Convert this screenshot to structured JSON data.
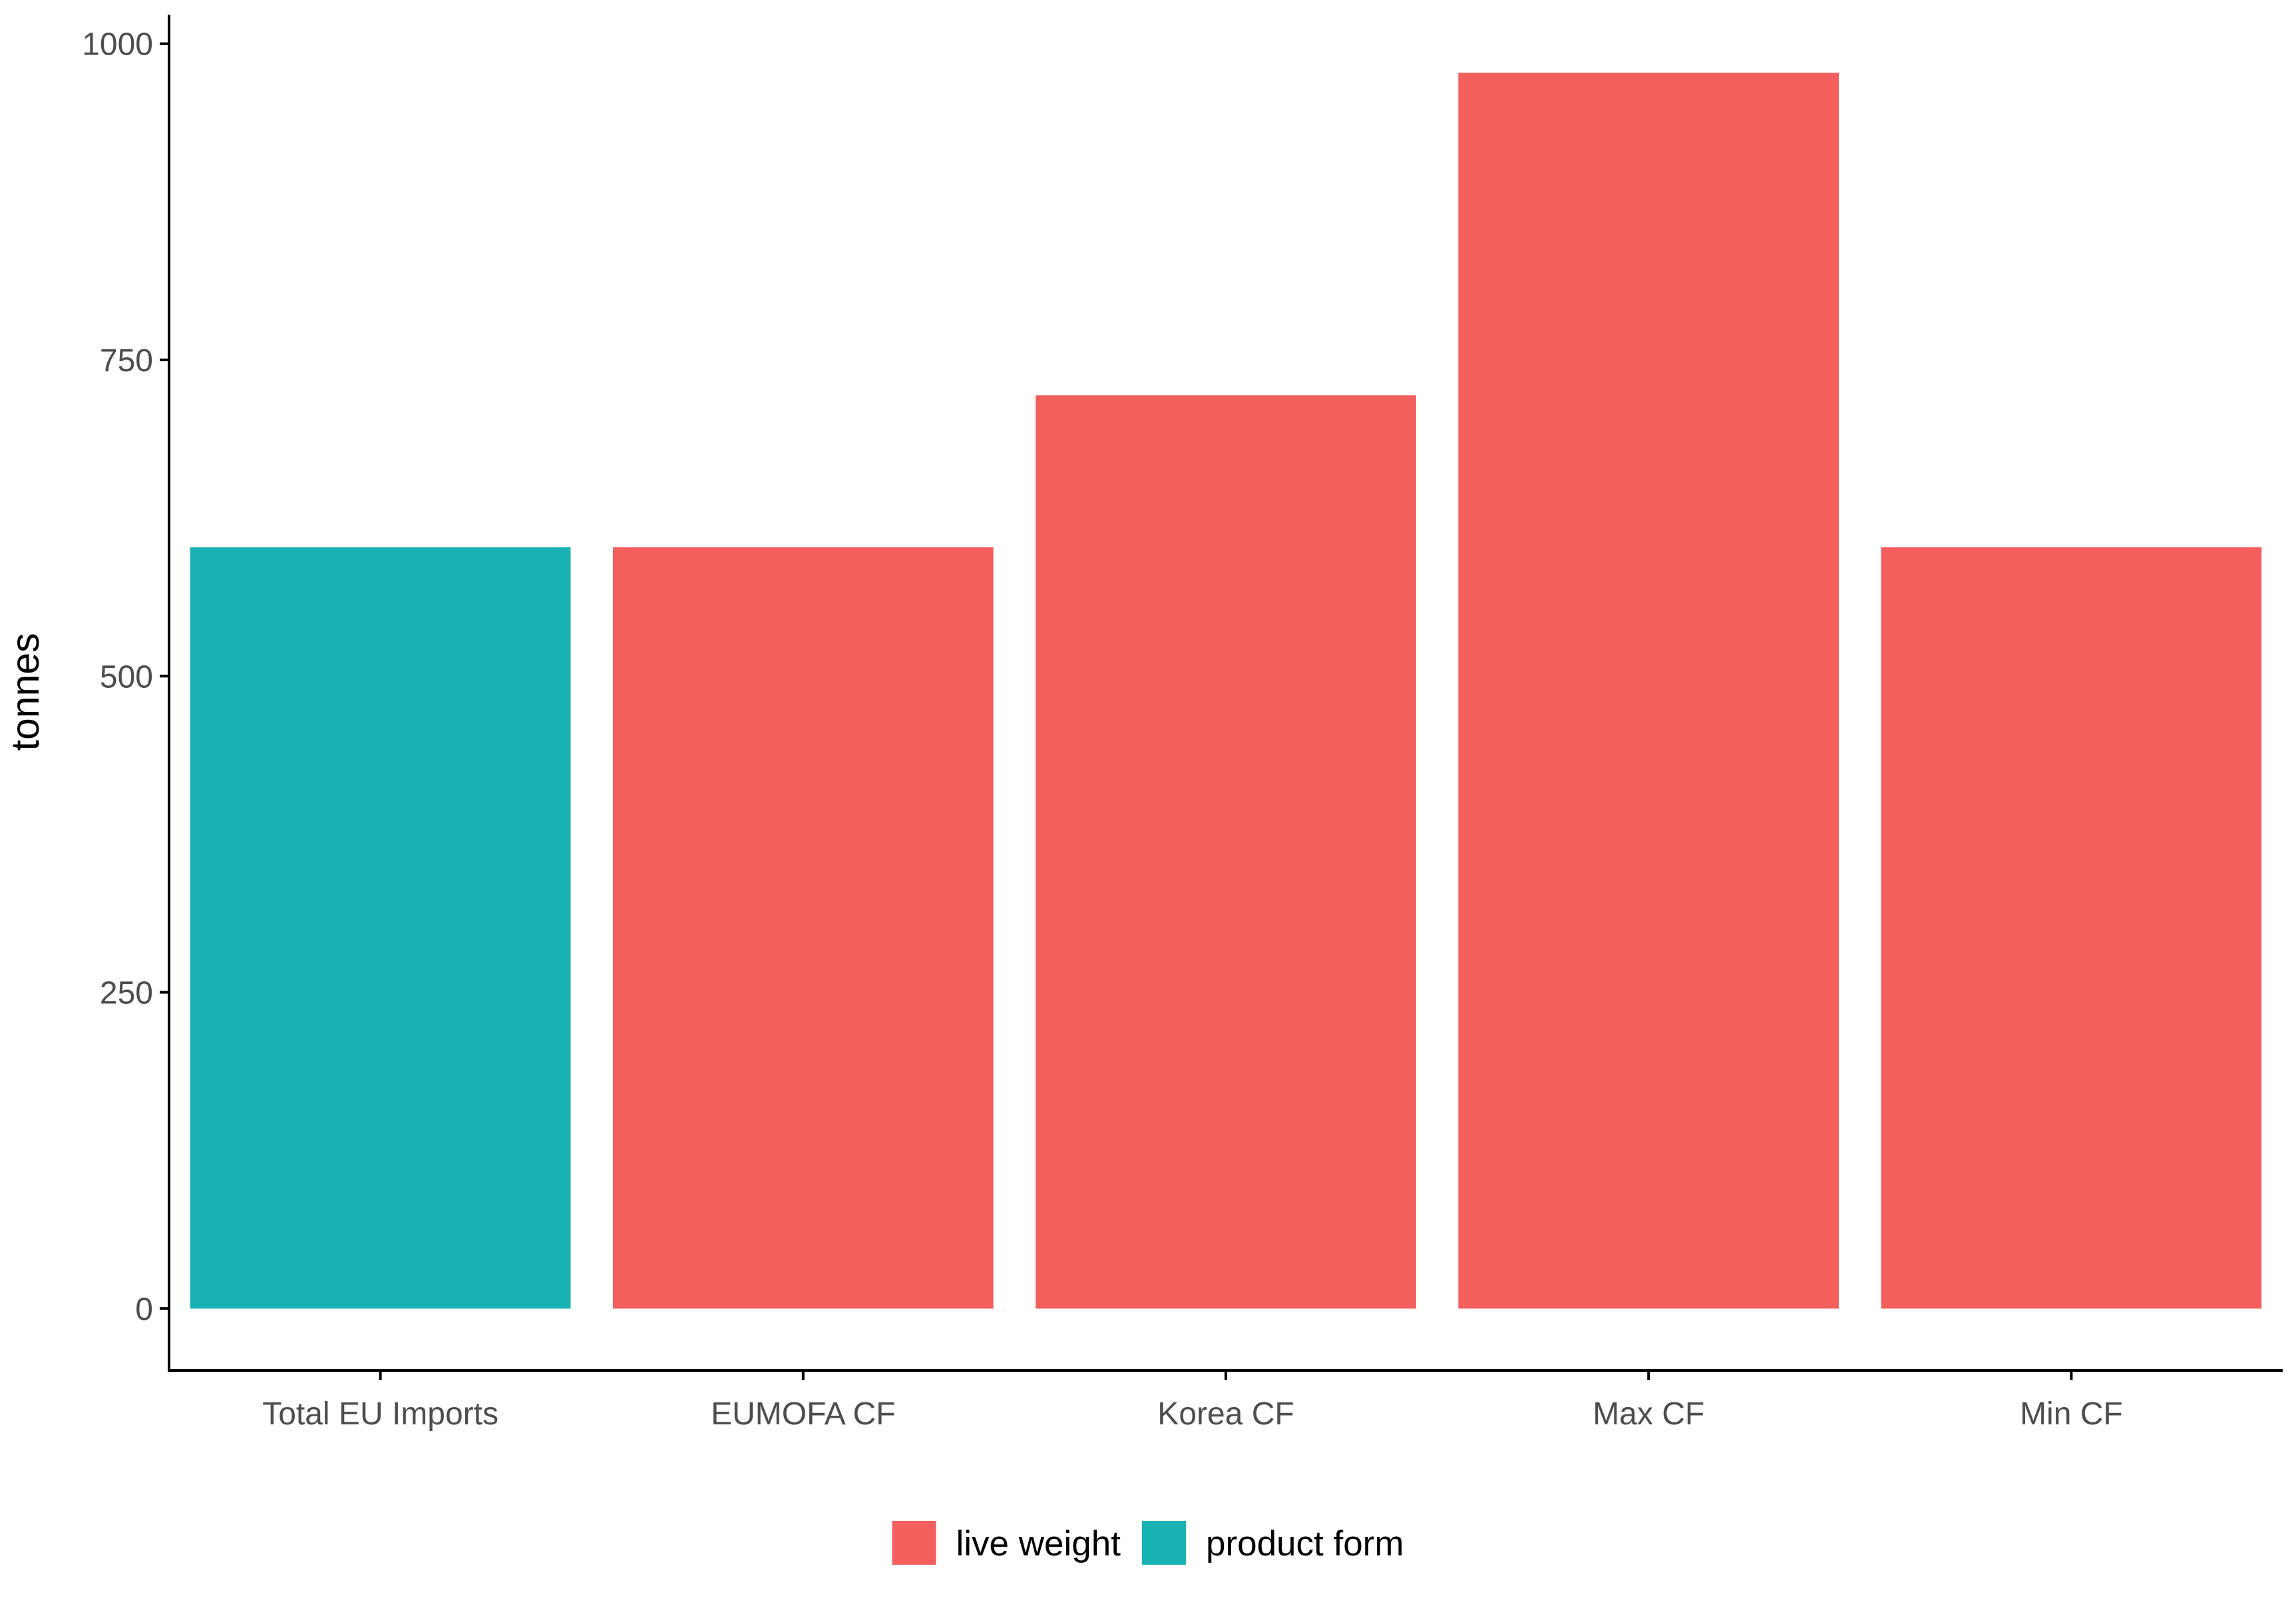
{
  "chart_data": {
    "type": "bar",
    "title": "",
    "xlabel": "",
    "ylabel": "tonnes",
    "categories": [
      "Total EU Imports",
      "EUMOFA CF",
      "Korea CF",
      "Max CF",
      "Min CF"
    ],
    "values": [
      602,
      602,
      722,
      977,
      602
    ],
    "groups": [
      "product form",
      "live weight",
      "live weight",
      "live weight",
      "live weight"
    ],
    "ylim": [
      -49,
      1023
    ],
    "yticks": [
      0,
      250,
      500,
      750,
      1000
    ],
    "grid": false,
    "legend": {
      "position": "bottom",
      "entries": [
        {
          "label": "live weight",
          "color": "#F25F5C"
        },
        {
          "label": "product form",
          "color": "#1AB3B5"
        }
      ]
    }
  }
}
